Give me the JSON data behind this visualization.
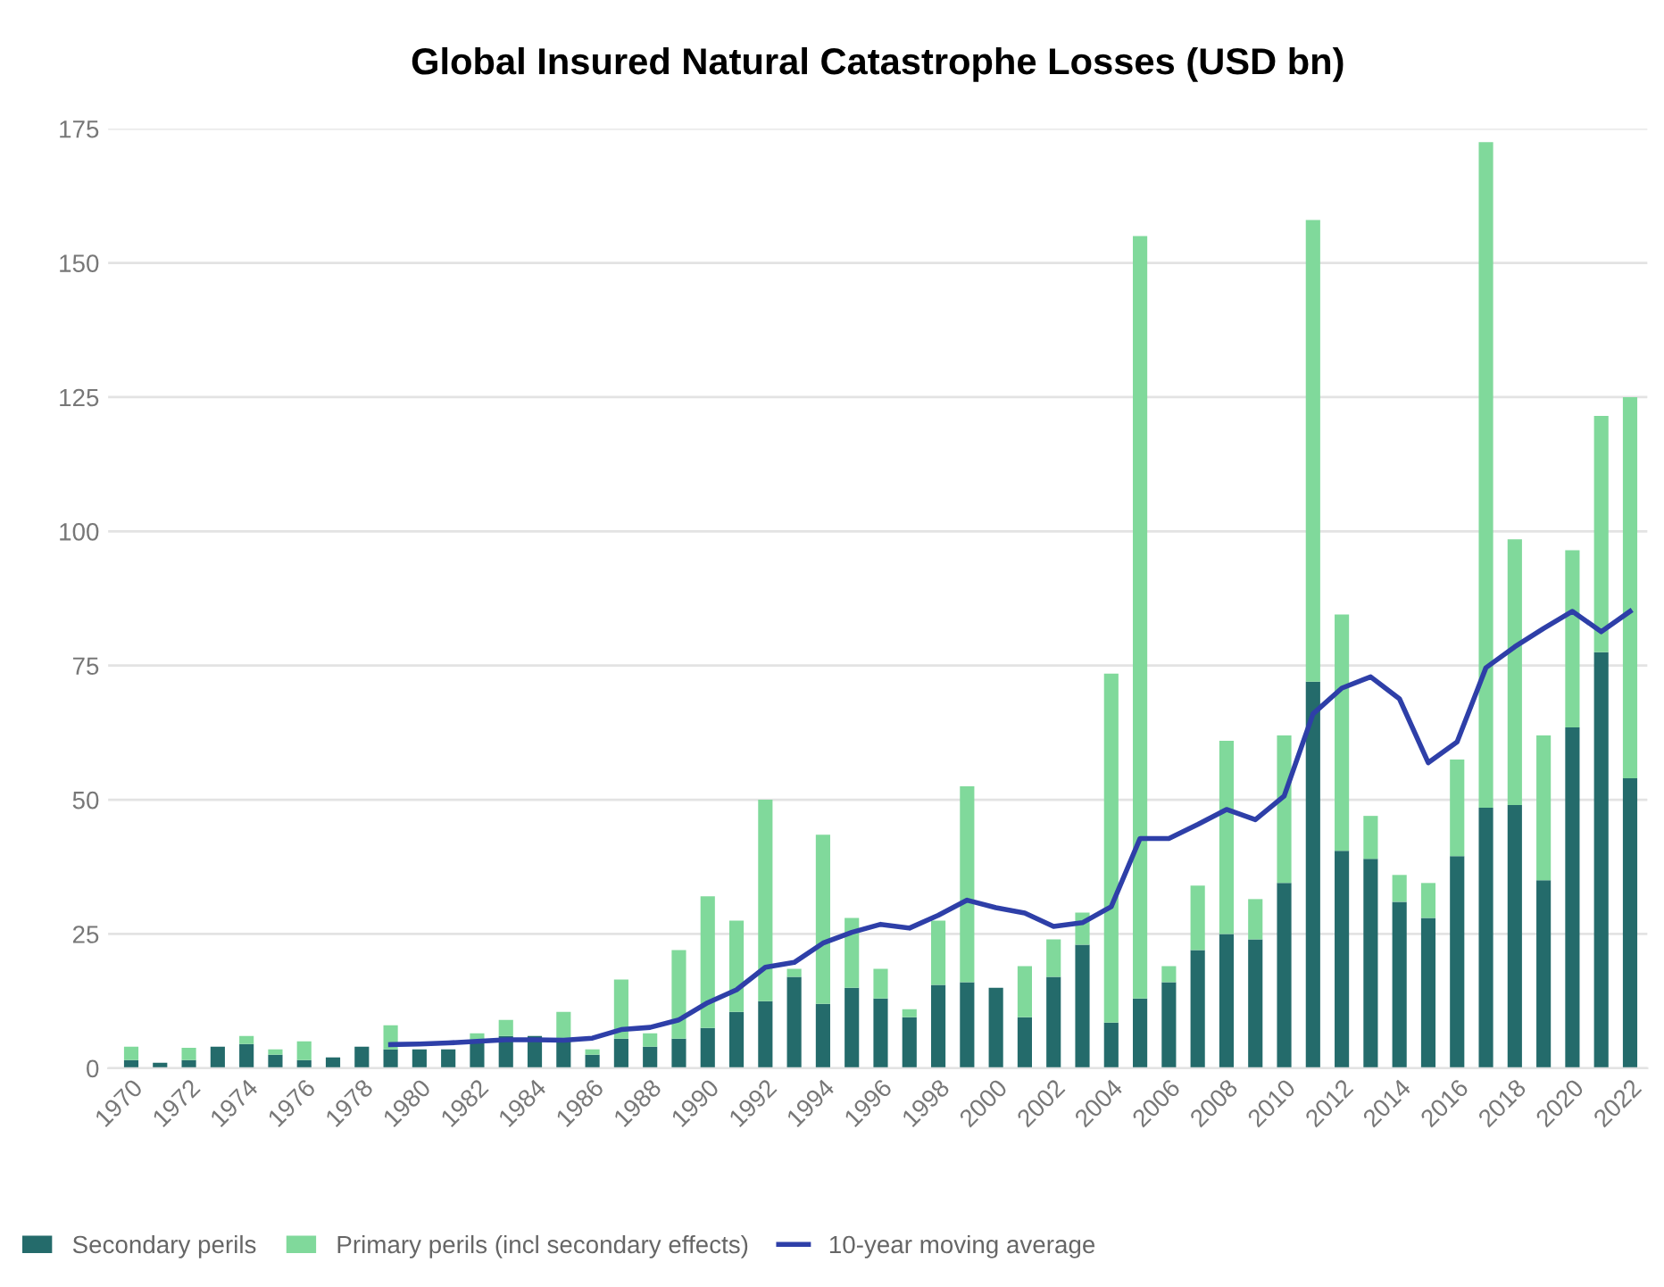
{
  "chart_data": {
    "type": "bar",
    "title": "Global Insured Natural Catastrophe Losses (USD bn)",
    "categories": [
      "1970",
      null,
      "1972",
      null,
      "1974",
      null,
      "1976",
      null,
      "1978",
      null,
      "1980",
      null,
      "1982",
      null,
      "1984",
      null,
      "1986",
      null,
      "1988",
      null,
      "1990",
      null,
      "1992",
      null,
      "1994",
      null,
      "1996",
      null,
      "1998",
      null,
      "2000",
      null,
      "2002",
      null,
      "2004",
      null,
      "2006",
      null,
      "2008",
      null,
      "2010",
      null,
      "2012",
      null,
      "2014",
      null,
      "2016",
      null,
      "2018",
      null,
      "2020",
      null,
      "2022"
    ],
    "stacked": true,
    "series": [
      {
        "name": "Secondary perils",
        "color": "#246b6b",
        "values": [
          1.5,
          1,
          1.5,
          4,
          4.5,
          2.5,
          1.5,
          2,
          4,
          3.5,
          3.5,
          3.5,
          5,
          6,
          6,
          5,
          2.5,
          5.5,
          4,
          5.5,
          7.5,
          10.5,
          12.5,
          17,
          12,
          15,
          13,
          9.5,
          15.5,
          16,
          15,
          9.5,
          17,
          23,
          8.5,
          13,
          16,
          22,
          25,
          24,
          34.5,
          72,
          40.5,
          39,
          31,
          28,
          39.5,
          48.5,
          49,
          35,
          63.5,
          77.5,
          54
        ]
      },
      {
        "name": "Primary perils (incl secondary effects)",
        "color": "#80d99b",
        "values": [
          2.5,
          0,
          2.3,
          0,
          1.5,
          1,
          3.5,
          0,
          0,
          4.5,
          0,
          0,
          1.5,
          3,
          0,
          5.5,
          1,
          11,
          2.5,
          16.5,
          24.5,
          17,
          37.5,
          1.5,
          31.5,
          13,
          5.5,
          1.5,
          12,
          36.5,
          0,
          9.5,
          7,
          6,
          65,
          142,
          3,
          12,
          36,
          7.5,
          27.5,
          86,
          44,
          8,
          5,
          6.5,
          18,
          124,
          49.5,
          27,
          33,
          44,
          71
        ]
      },
      {
        "name": "10-year moving average",
        "type": "line",
        "color": "#2e3fa8",
        "values": [
          null,
          null,
          null,
          null,
          null,
          null,
          null,
          null,
          null,
          4.4,
          4.5,
          4.7,
          5,
          5.3,
          5.3,
          5.2,
          5.6,
          7.2,
          7.6,
          9,
          12.2,
          14.6,
          18.8,
          19.7,
          23.3,
          25.3,
          26.8,
          26.1,
          28.5,
          31.3,
          29.9,
          28.9,
          26.4,
          27.1,
          30.1,
          42.8,
          42.8,
          45.4,
          48.2,
          46.3,
          50.7,
          66,
          70.8,
          72.9,
          68.8,
          56.9,
          60.8,
          74.6,
          78.5,
          81.9,
          85.1,
          81.3,
          85.1
        ]
      }
    ],
    "ylim": [
      0,
      175
    ],
    "yticks": [
      0,
      25,
      50,
      75,
      100,
      125,
      150,
      175
    ],
    "grid": "y",
    "legend": "bottom left"
  }
}
